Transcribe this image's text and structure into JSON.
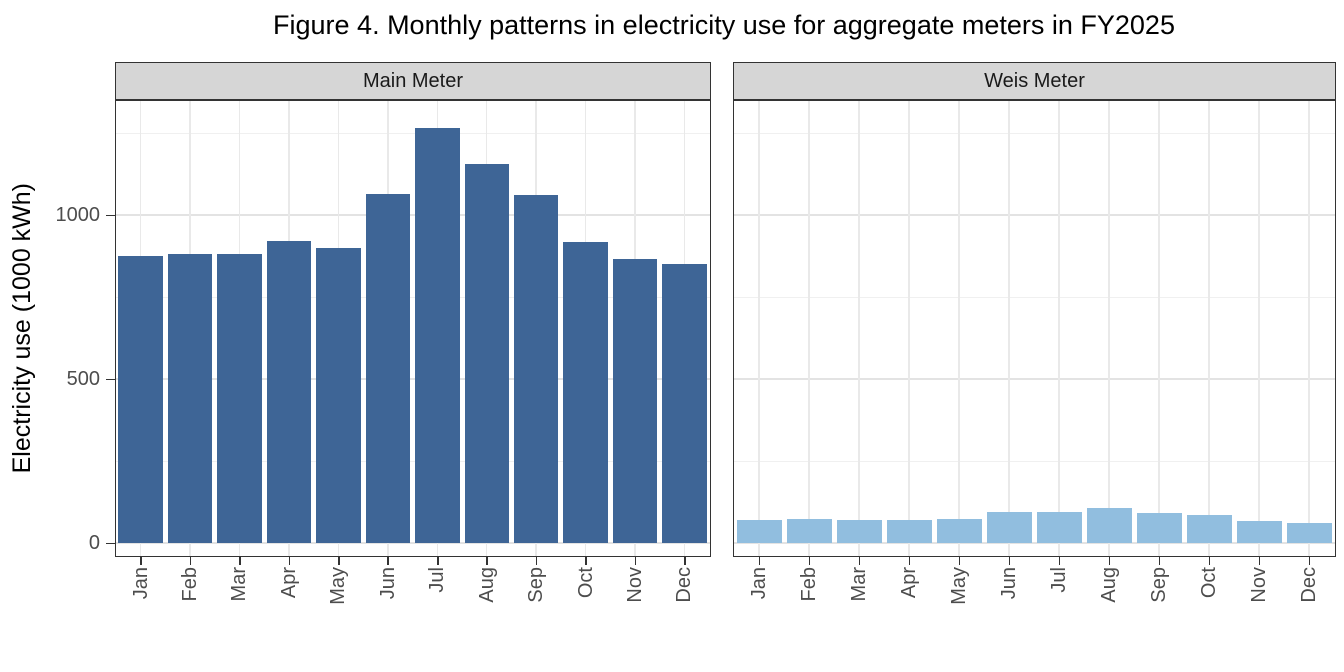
{
  "figure": {
    "title": "Figure 4. Monthly patterns in electricity use for aggregate meters in FY2025"
  },
  "chart_data": {
    "type": "bar",
    "title": "Figure 4. Monthly patterns in electricity use for aggregate meters in FY2025",
    "xlabel": "",
    "ylabel": "Electricity use (1000 kWh)",
    "categories": [
      "Jan",
      "Feb",
      "Mar",
      "Apr",
      "May",
      "Jun",
      "Jul",
      "Aug",
      "Sep",
      "Oct",
      "Nov",
      "Dec"
    ],
    "y_ticks": [
      0,
      500,
      1000
    ],
    "y_minor_gridlines": [
      250,
      750,
      1250
    ],
    "ylim": [
      -40,
      1352
    ],
    "grid": "on",
    "legend_position": "none",
    "facet_layout": "two panels side by side, shared y axis",
    "facets": [
      {
        "label": "Main Meter",
        "color": "#3E6596",
        "values": [
          875,
          880,
          880,
          920,
          900,
          1065,
          1265,
          1155,
          1060,
          918,
          866,
          850
        ]
      },
      {
        "label": "Weis Meter",
        "color": "#91BEDF",
        "values": [
          70,
          72,
          70,
          70,
          74,
          95,
          94,
          106,
          90,
          84,
          66,
          61
        ]
      }
    ],
    "colors": {
      "strip_background": "#D6D6D6",
      "panel_border": "#333333",
      "major_gridline": "#E3E3E3",
      "minor_gridline": "#F0F0F0",
      "axis_text": "#4D4D4D",
      "title_text": "#000000"
    }
  }
}
